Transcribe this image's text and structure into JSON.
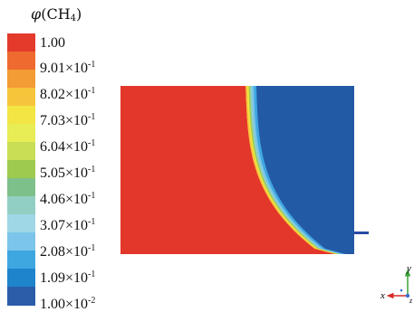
{
  "legend": {
    "title_symbol": "φ",
    "title_species": "CH",
    "title_subscript": "4",
    "labels": [
      {
        "mantissa": "1.00",
        "exp": ""
      },
      {
        "mantissa": "9.01×10",
        "exp": "-1"
      },
      {
        "mantissa": "8.02×10",
        "exp": "-1"
      },
      {
        "mantissa": "7.03×10",
        "exp": "-1"
      },
      {
        "mantissa": "6.04×10",
        "exp": "-1"
      },
      {
        "mantissa": "5.05×10",
        "exp": "-1"
      },
      {
        "mantissa": "4.06×10",
        "exp": "-1"
      },
      {
        "mantissa": "3.07×10",
        "exp": "-1"
      },
      {
        "mantissa": "2.08×10",
        "exp": "-1"
      },
      {
        "mantissa": "1.09×10",
        "exp": "-1"
      },
      {
        "mantissa": "1.00×10",
        "exp": "-2"
      }
    ],
    "colors": [
      "#e43a2c",
      "#ee6a2e",
      "#f39b34",
      "#f7c53c",
      "#f2e544",
      "#e8ec55",
      "#c9de55",
      "#9ecb4f",
      "#7ec08a",
      "#92cfc3",
      "#9fd7e6",
      "#7bc5ea",
      "#3fa7e0",
      "#1e84cc",
      "#2b5da8"
    ]
  },
  "field": {
    "low_color": "#235aa5",
    "high_color": "#e4372b",
    "front_colors": [
      "#e4372b",
      "#f7c53c",
      "#f2e544",
      "#9ecb4f",
      "#92cfc3",
      "#7bc5ea",
      "#3fa7e0",
      "#235aa5"
    ]
  },
  "axes": {
    "y_label": "y",
    "x_label": "x",
    "z_label": "z",
    "colors": {
      "y": "#3aa336",
      "x": "#d62a2a",
      "z": "#3a6fd0"
    }
  }
}
